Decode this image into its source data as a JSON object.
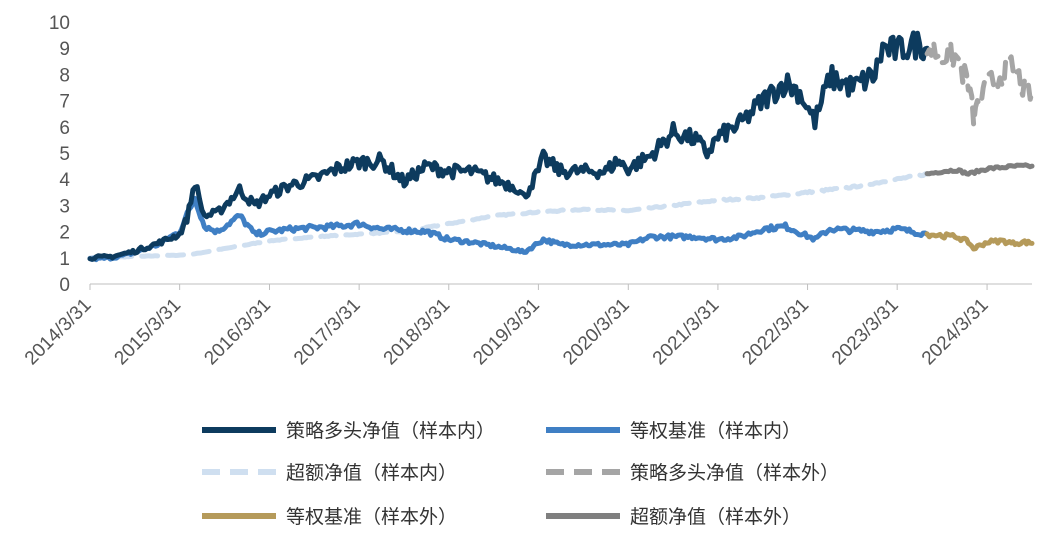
{
  "chart_data": {
    "type": "line",
    "title": "",
    "xlabel": "",
    "ylabel": "",
    "ylim": [
      0,
      10
    ],
    "yticks": [
      0,
      1,
      2,
      3,
      4,
      5,
      6,
      7,
      8,
      9,
      10
    ],
    "xlim": [
      "2014-03-31",
      "2024-09-30"
    ],
    "xticks": [
      "2014/3/31",
      "2015/3/31",
      "2016/3/31",
      "2017/3/31",
      "2018/3/31",
      "2019/3/31",
      "2020/3/31",
      "2021/3/31",
      "2022/3/31",
      "2023/3/31",
      "2024/3/31"
    ],
    "grid": false,
    "legend_position": "bottom",
    "series": [
      {
        "name": "策略多头净值（样本内）",
        "color": "#0d3b5e",
        "style": "solid",
        "points": [
          [
            "2014-03-31",
            1.0
          ],
          [
            "2014-06-30",
            1.05
          ],
          [
            "2014-09-30",
            1.25
          ],
          [
            "2014-12-31",
            1.55
          ],
          [
            "2015-03-31",
            1.9
          ],
          [
            "2015-04-30",
            2.5
          ],
          [
            "2015-06-01",
            3.9
          ],
          [
            "2015-06-20",
            3.2
          ],
          [
            "2015-07-10",
            2.6
          ],
          [
            "2015-08-31",
            2.7
          ],
          [
            "2015-11-30",
            3.6
          ],
          [
            "2016-01-31",
            3.0
          ],
          [
            "2016-03-31",
            3.4
          ],
          [
            "2016-06-30",
            3.8
          ],
          [
            "2016-09-30",
            4.0
          ],
          [
            "2016-12-31",
            4.4
          ],
          [
            "2017-03-31",
            4.65
          ],
          [
            "2017-06-30",
            4.7
          ],
          [
            "2017-09-30",
            3.9
          ],
          [
            "2017-12-31",
            4.5
          ],
          [
            "2018-03-31",
            4.3
          ],
          [
            "2018-06-30",
            4.3
          ],
          [
            "2018-09-30",
            4.0
          ],
          [
            "2018-12-31",
            3.7
          ],
          [
            "2019-01-31",
            3.3
          ],
          [
            "2019-03-31",
            4.3
          ],
          [
            "2019-04-20",
            4.8
          ],
          [
            "2019-06-30",
            4.3
          ],
          [
            "2019-09-30",
            4.3
          ],
          [
            "2019-12-31",
            4.3
          ],
          [
            "2020-02-15",
            4.7
          ],
          [
            "2020-03-31",
            4.4
          ],
          [
            "2020-06-30",
            4.9
          ],
          [
            "2020-09-30",
            5.8
          ],
          [
            "2020-12-31",
            5.5
          ],
          [
            "2021-02-15",
            5.0
          ],
          [
            "2021-03-31",
            5.6
          ],
          [
            "2021-06-30",
            6.1
          ],
          [
            "2021-09-30",
            7.0
          ],
          [
            "2021-12-31",
            7.7
          ],
          [
            "2022-02-28",
            7.3
          ],
          [
            "2022-04-30",
            6.2
          ],
          [
            "2022-06-30",
            7.9
          ],
          [
            "2022-09-30",
            7.5
          ],
          [
            "2022-12-31",
            8.0
          ],
          [
            "2023-01-31",
            9.0
          ],
          [
            "2023-03-31",
            8.9
          ],
          [
            "2023-06-30",
            9.2
          ],
          [
            "2023-07-31",
            9.0
          ]
        ]
      },
      {
        "name": "等权基准（样本内）",
        "color": "#3f7fc4",
        "style": "solid",
        "points": [
          [
            "2014-03-31",
            0.95
          ],
          [
            "2014-06-30",
            1.0
          ],
          [
            "2014-09-30",
            1.2
          ],
          [
            "2014-12-31",
            1.5
          ],
          [
            "2015-03-31",
            2.0
          ],
          [
            "2015-06-01",
            3.3
          ],
          [
            "2015-07-10",
            2.2
          ],
          [
            "2015-08-31",
            2.0
          ],
          [
            "2015-11-30",
            2.6
          ],
          [
            "2016-01-31",
            1.9
          ],
          [
            "2016-03-31",
            2.0
          ],
          [
            "2016-06-30",
            2.1
          ],
          [
            "2016-12-31",
            2.2
          ],
          [
            "2017-03-31",
            2.3
          ],
          [
            "2017-06-30",
            2.1
          ],
          [
            "2017-12-31",
            2.0
          ],
          [
            "2018-03-31",
            1.7
          ],
          [
            "2018-06-30",
            1.6
          ],
          [
            "2018-12-31",
            1.3
          ],
          [
            "2019-01-31",
            1.2
          ],
          [
            "2019-04-20",
            1.7
          ],
          [
            "2019-06-30",
            1.5
          ],
          [
            "2019-12-31",
            1.5
          ],
          [
            "2020-03-31",
            1.5
          ],
          [
            "2020-06-30",
            1.8
          ],
          [
            "2020-12-31",
            1.8
          ],
          [
            "2021-03-31",
            1.7
          ],
          [
            "2021-06-30",
            1.8
          ],
          [
            "2021-09-30",
            2.1
          ],
          [
            "2021-12-31",
            2.2
          ],
          [
            "2022-04-30",
            1.7
          ],
          [
            "2022-06-30",
            2.1
          ],
          [
            "2022-12-31",
            2.0
          ],
          [
            "2023-03-31",
            2.1
          ],
          [
            "2023-07-31",
            1.9
          ]
        ]
      },
      {
        "name": "超额净值（样本内）",
        "color": "#cfdff0",
        "style": "dashed",
        "points": [
          [
            "2014-03-31",
            1.0
          ],
          [
            "2014-09-30",
            1.05
          ],
          [
            "2015-03-31",
            1.1
          ],
          [
            "2015-06-01",
            1.15
          ],
          [
            "2015-08-31",
            1.3
          ],
          [
            "2016-03-31",
            1.65
          ],
          [
            "2016-09-30",
            1.8
          ],
          [
            "2017-03-31",
            1.9
          ],
          [
            "2017-09-30",
            2.0
          ],
          [
            "2018-03-31",
            2.3
          ],
          [
            "2018-09-30",
            2.6
          ],
          [
            "2019-03-31",
            2.75
          ],
          [
            "2019-09-30",
            2.85
          ],
          [
            "2020-03-31",
            2.8
          ],
          [
            "2020-09-30",
            3.0
          ],
          [
            "2021-03-31",
            3.2
          ],
          [
            "2021-09-30",
            3.3
          ],
          [
            "2022-03-31",
            3.5
          ],
          [
            "2022-09-30",
            3.7
          ],
          [
            "2023-03-31",
            4.0
          ],
          [
            "2023-07-31",
            4.2
          ]
        ]
      },
      {
        "name": "策略多头净值（样本外）",
        "color": "#a5a5a5",
        "style": "dashed",
        "points": [
          [
            "2023-07-31",
            9.0
          ],
          [
            "2023-09-30",
            8.8
          ],
          [
            "2023-11-30",
            8.6
          ],
          [
            "2024-01-15",
            7.6
          ],
          [
            "2024-02-05",
            6.4
          ],
          [
            "2024-03-31",
            7.6
          ],
          [
            "2024-05-31",
            8.0
          ],
          [
            "2024-07-15",
            8.3
          ],
          [
            "2024-08-31",
            7.4
          ],
          [
            "2024-09-30",
            7.3
          ]
        ]
      },
      {
        "name": "等权基准（样本外）",
        "color": "#b59a5a",
        "style": "solid",
        "points": [
          [
            "2023-07-31",
            1.9
          ],
          [
            "2023-09-30",
            1.85
          ],
          [
            "2023-11-30",
            1.8
          ],
          [
            "2024-01-15",
            1.6
          ],
          [
            "2024-02-05",
            1.35
          ],
          [
            "2024-03-31",
            1.6
          ],
          [
            "2024-05-31",
            1.65
          ],
          [
            "2024-07-15",
            1.55
          ],
          [
            "2024-08-31",
            1.6
          ],
          [
            "2024-09-30",
            1.55
          ]
        ]
      },
      {
        "name": "超额净值（样本外）",
        "color": "#7f7f7f",
        "style": "solid",
        "points": [
          [
            "2023-07-31",
            4.2
          ],
          [
            "2023-09-30",
            4.3
          ],
          [
            "2023-11-30",
            4.35
          ],
          [
            "2024-01-15",
            4.2
          ],
          [
            "2024-03-31",
            4.4
          ],
          [
            "2024-05-31",
            4.45
          ],
          [
            "2024-07-31",
            4.5
          ],
          [
            "2024-09-30",
            4.5
          ]
        ]
      }
    ]
  }
}
